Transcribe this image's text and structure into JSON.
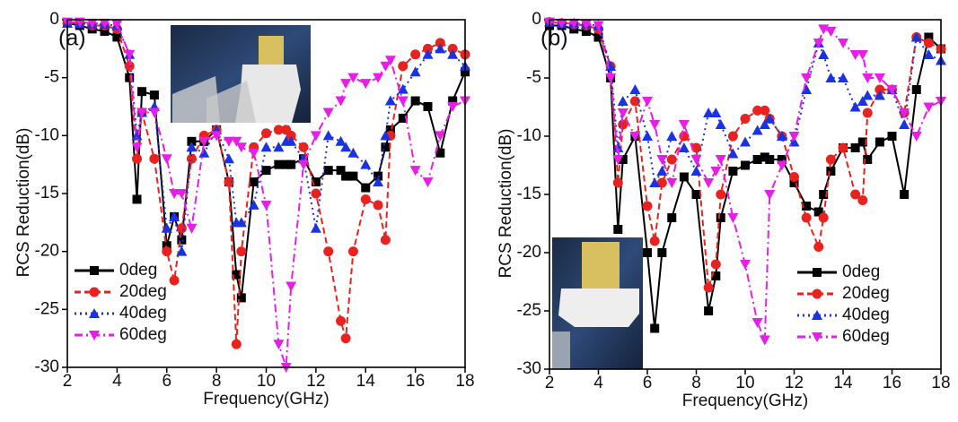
{
  "chart_data": [
    {
      "type": "line",
      "panel_label": "(a)",
      "x_label": "Frequency(GHz)",
      "y_label": "RCS Reduction(dB)",
      "x": [
        2,
        2.5,
        3,
        3.5,
        4,
        4.5,
        4.8,
        5,
        5.5,
        6,
        6.3,
        6.6,
        7,
        7.5,
        8,
        8.5,
        8.8,
        9,
        9.5,
        10,
        10.5,
        10.8,
        11,
        11.5,
        12,
        12.5,
        13,
        13.2,
        13.5,
        14,
        14.5,
        14.8,
        15,
        15.5,
        16,
        16.5,
        17,
        17.5,
        18
      ],
      "xlim": [
        2,
        18
      ],
      "xticks": [
        2,
        4,
        6,
        8,
        10,
        12,
        14,
        16,
        18
      ],
      "ylim": [
        -30,
        0
      ],
      "yticks": [
        0,
        -5,
        -10,
        -15,
        -20,
        -25,
        -30
      ],
      "legend": "lower left",
      "series": [
        {
          "name": "0deg",
          "color": "#000000",
          "marker": "square",
          "dash": "solid",
          "values": [
            -0.3,
            -0.5,
            -0.8,
            -1,
            -1.5,
            -5,
            -15.5,
            -6.2,
            -6.5,
            -19.5,
            -17,
            -19,
            -10.5,
            -10.5,
            -9.5,
            -14,
            -22,
            -24,
            -14,
            -13,
            -12.5,
            -12.5,
            -12.5,
            -12,
            -14,
            -13,
            -13,
            -13.5,
            -13.5,
            -14.5,
            -13.5,
            -11,
            -9.5,
            -8.5,
            -7,
            -7.5,
            -11.5,
            -7,
            -4.5
          ]
        },
        {
          "name": "20deg",
          "color": "#e8231f",
          "marker": "circle",
          "dash": "dashed",
          "values": [
            -0.3,
            -0.3,
            -0.5,
            -0.5,
            -0.8,
            -4,
            -12,
            -8,
            -12,
            -20,
            -22.5,
            -18,
            -12,
            -10,
            -9.5,
            -14,
            -28,
            -20,
            -11,
            -9.8,
            -9.5,
            -9.5,
            -10,
            -11,
            -15,
            -20,
            -26,
            -27.5,
            -20,
            -15.5,
            -16,
            -19,
            -10,
            -4,
            -3,
            -2.5,
            -2,
            -2.5,
            -3
          ]
        },
        {
          "name": "40deg",
          "color": "#1a33e0",
          "marker": "triangle-up",
          "dash": "dotted",
          "values": [
            -0.3,
            -0.3,
            -0.4,
            -0.4,
            -0.5,
            -3,
            -10,
            -8,
            -7.5,
            -18,
            -17,
            -20,
            -11,
            -11.5,
            -9.5,
            -12,
            -17.5,
            -17.5,
            -16,
            -11,
            -11,
            -10.5,
            -10.5,
            -12,
            -18,
            -10,
            -10.5,
            -11,
            -11.5,
            -12.5,
            -14,
            -10,
            -7,
            -6,
            -4.5,
            -3,
            -2.5,
            -3,
            -4
          ]
        },
        {
          "name": "60deg",
          "color": "#e61ee6",
          "marker": "triangle-down",
          "dash": "dashdot",
          "values": [
            -0.2,
            -0.2,
            -0.3,
            -0.3,
            -0.4,
            -3,
            -11,
            -8,
            -8,
            -12,
            -15,
            -15,
            -18,
            -10.5,
            -10,
            -10.5,
            -10.5,
            -11,
            -11.5,
            -16,
            -28,
            -30,
            -23,
            -12.5,
            -10,
            -8,
            -7,
            -5.5,
            -5,
            -5.5,
            -5,
            -4,
            -3.5,
            -7,
            -13,
            -14,
            -10,
            -7.5,
            -7
          ]
        }
      ]
    },
    {
      "type": "line",
      "panel_label": "(b)",
      "x_label": "Frequency(GHz)",
      "y_label": "RCS Reduction(dB)",
      "x": [
        2,
        2.5,
        3,
        3.5,
        4,
        4.5,
        4.8,
        5,
        5.5,
        6,
        6.3,
        6.6,
        7,
        7.5,
        8,
        8.5,
        8.8,
        9,
        9.5,
        10,
        10.5,
        10.8,
        11,
        11.5,
        12,
        12.5,
        13,
        13.2,
        13.5,
        14,
        14.5,
        14.8,
        15,
        15.5,
        16,
        16.5,
        17,
        17.5,
        18
      ],
      "xlim": [
        2,
        18
      ],
      "xticks": [
        2,
        4,
        6,
        8,
        10,
        12,
        14,
        16,
        18
      ],
      "ylim": [
        -30,
        0
      ],
      "yticks": [
        0,
        -5,
        -10,
        -15,
        -20,
        -25,
        -30
      ],
      "legend": "lower right",
      "series": [
        {
          "name": "0deg",
          "color": "#000000",
          "marker": "square",
          "dash": "solid",
          "values": [
            -0.5,
            -0.5,
            -0.8,
            -1,
            -1.5,
            -5,
            -18,
            -12,
            -10,
            -20,
            -26.5,
            -20,
            -17,
            -13.5,
            -15,
            -25,
            -22,
            -17,
            -13,
            -12.5,
            -12,
            -11.8,
            -12,
            -12,
            -14,
            -16,
            -16.5,
            -15,
            -13,
            -11,
            -11,
            -10.5,
            -12,
            -10.5,
            -10,
            -15,
            -6,
            -1.5,
            -2.5
          ]
        },
        {
          "name": "20deg",
          "color": "#e8231f",
          "marker": "circle",
          "dash": "dashed",
          "values": [
            -0.2,
            -0.3,
            -0.4,
            -0.5,
            -0.8,
            -4,
            -14,
            -9,
            -7,
            -16,
            -19,
            -14,
            -12,
            -10,
            -11,
            -23,
            -21,
            -15,
            -10,
            -8.5,
            -7.8,
            -7.8,
            -8.5,
            -10,
            -13.5,
            -17,
            -19.5,
            -17,
            -12,
            -11,
            -15,
            -15.5,
            -8,
            -6,
            -6,
            -8,
            -1.5,
            -2,
            -2.5
          ]
        },
        {
          "name": "40deg",
          "color": "#1a33e0",
          "marker": "triangle-up",
          "dash": "dotted",
          "values": [
            -0.2,
            -0.3,
            -0.3,
            -0.4,
            -0.5,
            -4,
            -11,
            -7,
            -6,
            -10,
            -14,
            -13,
            -10,
            -11,
            -13,
            -8,
            -8,
            -9,
            -11.5,
            -10.5,
            -9.5,
            -9,
            -8.5,
            -10,
            -10.5,
            -6,
            -2,
            -3,
            -5,
            -5,
            -7.5,
            -7,
            -6.5,
            -6.5,
            -6,
            -9,
            -1.5,
            -3,
            -3.5
          ]
        },
        {
          "name": "60deg",
          "color": "#e61ee6",
          "marker": "triangle-down",
          "dash": "dashdot",
          "values": [
            -0.2,
            -0.3,
            -0.3,
            -0.4,
            -0.5,
            -5,
            -12,
            -8,
            -10,
            -7,
            -9,
            -12,
            -14,
            -9,
            -12,
            -14,
            -13,
            -12,
            -17,
            -21,
            -26,
            -27.5,
            -15,
            -12.5,
            -10,
            -5,
            -2,
            -0.8,
            -1,
            -2,
            -3,
            -3,
            -5,
            -5,
            -6,
            -8,
            -10,
            -7.5,
            -7
          ]
        }
      ]
    }
  ]
}
